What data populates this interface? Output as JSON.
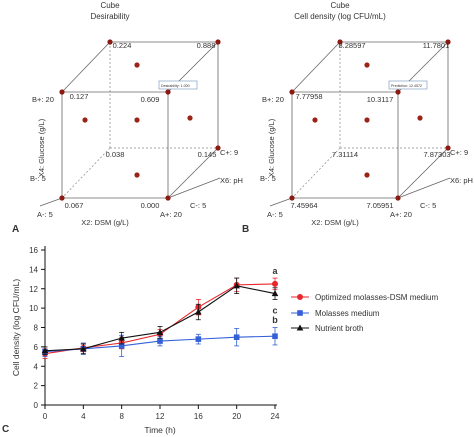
{
  "panels": {
    "A": {
      "letter": "A",
      "title": "Cube",
      "subtitle": "Desirability",
      "axis_x": "X2: DSM (g/L)",
      "axis_y": "X4: Glucose (g/L)",
      "axis_z": "X6: pH",
      "lab_bplus": "B+: 20",
      "lab_bminus": "B-: 5",
      "lab_aminus": "A-: 5",
      "lab_aplus": "A+: 20",
      "lab_cplus": "C+: 9",
      "lab_cminus": "C-: 5",
      "tooltip": "Desirability: 1.000",
      "corner_values": {
        "back_top_left": "0.224",
        "back_top_right": "0.888",
        "front_top_left": "0.127",
        "front_top_right": "0.609",
        "back_bottom_right": "0.145",
        "front_bottom_right": "0.038",
        "front_bottom_left": "0.067",
        "back_bottom_left": "0.000"
      }
    },
    "B": {
      "letter": "B",
      "title": "Cube",
      "subtitle": "Cell density (log CFU/mL)",
      "axis_x": "X2: DSM (g/L)",
      "axis_y": "X4: Glucose (g/L)",
      "axis_z": "X6: pH",
      "lab_bplus": "B+: 20",
      "lab_bminus": "B-: 5",
      "lab_aminus": "A-: 5",
      "lab_aplus": "A+: 20",
      "lab_cplus": "C+: 9",
      "lab_cminus": "C-: 5",
      "tooltip": "Prediction: 12.4572",
      "corner_values": {
        "back_top_left": "8.28597",
        "back_top_right": "11.7801",
        "front_top_left": "7.77958",
        "front_top_right": "10.3117",
        "back_bottom_right": "7.87303",
        "front_bottom_right": "7.31114",
        "front_bottom_left": "7.45964",
        "back_bottom_left": "7.05951"
      }
    },
    "C": {
      "letter": "C"
    }
  },
  "chart_data": {
    "type": "line",
    "xlabel": "Time (h)",
    "ylabel": "Cell density (log CFU/mL)",
    "xlim": [
      0,
      24
    ],
    "ylim": [
      0,
      16
    ],
    "xticks": [
      0,
      4,
      8,
      12,
      16,
      20,
      24
    ],
    "yticks": [
      0,
      2,
      4,
      6,
      8,
      10,
      12,
      14,
      16
    ],
    "legend_position": "right",
    "series": [
      {
        "name": "Optimized molasses-DSM medium",
        "color": "#e8262b",
        "marker": "circle",
        "x": [
          0,
          4,
          8,
          12,
          16,
          20,
          24
        ],
        "y": [
          5.3,
          5.9,
          6.4,
          7.3,
          10.1,
          12.4,
          12.5
        ],
        "err": [
          0.5,
          0.4,
          0.6,
          0.5,
          0.8,
          0.7,
          0.6
        ],
        "letter": "a"
      },
      {
        "name": "Molasses medium",
        "color": "#3560d8",
        "marker": "square",
        "x": [
          0,
          4,
          8,
          12,
          16,
          20,
          24
        ],
        "y": [
          5.5,
          5.8,
          6.1,
          6.6,
          6.8,
          7.0,
          7.1
        ],
        "err": [
          0.5,
          0.6,
          1.1,
          0.5,
          0.5,
          0.9,
          0.9
        ],
        "letter": "b"
      },
      {
        "name": "Nutrient broth",
        "color": "#111111",
        "marker": "triangle",
        "x": [
          0,
          4,
          8,
          12,
          16,
          20,
          24
        ],
        "y": [
          5.6,
          5.8,
          6.9,
          7.5,
          9.6,
          12.3,
          11.5
        ],
        "err": [
          0.4,
          0.5,
          0.6,
          0.6,
          0.8,
          0.8,
          0.6
        ],
        "letter": "c"
      }
    ]
  }
}
